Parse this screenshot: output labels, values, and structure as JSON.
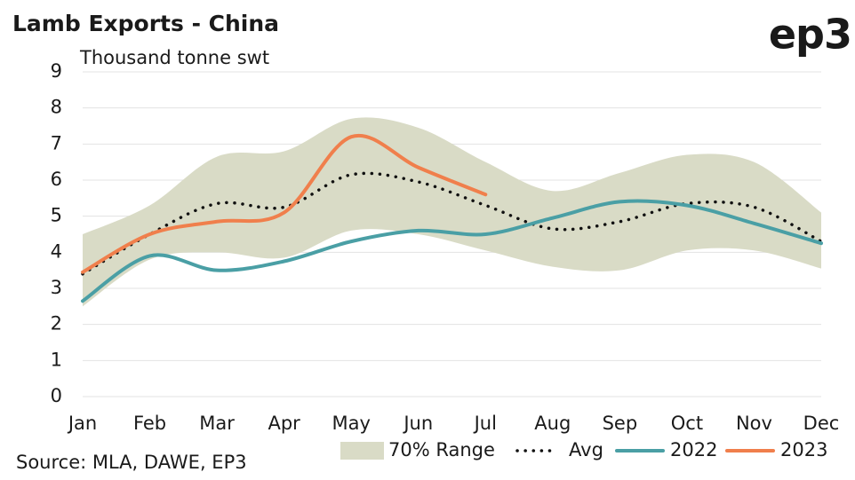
{
  "chart_data": {
    "type": "line",
    "title": "Lamb Exports - China",
    "subtitle": "Thousand tonne swt",
    "logo": "ep3",
    "source": "Source: MLA, DAWE, EP3",
    "categories": [
      "Jan",
      "Feb",
      "Mar",
      "Apr",
      "May",
      "Jun",
      "Jul",
      "Aug",
      "Sep",
      "Oct",
      "Nov",
      "Dec"
    ],
    "ylim": [
      0,
      9
    ],
    "yticks": [
      0,
      1,
      2,
      3,
      4,
      5,
      6,
      7,
      8,
      9
    ],
    "grid": true,
    "series": [
      {
        "name": "70% Range",
        "color": "#d9dbc6",
        "kind": "band",
        "high": [
          4.5,
          5.3,
          6.65,
          6.8,
          7.7,
          7.45,
          6.5,
          5.7,
          6.2,
          6.7,
          6.5,
          5.1
        ],
        "low": [
          2.5,
          3.8,
          4.0,
          3.85,
          4.6,
          4.5,
          4.05,
          3.6,
          3.5,
          4.05,
          4.05,
          3.55
        ]
      },
      {
        "name": "Avg",
        "color": "#111111",
        "kind": "dotted",
        "values": [
          3.4,
          4.5,
          5.35,
          5.25,
          6.15,
          5.95,
          5.3,
          4.65,
          4.85,
          5.35,
          5.25,
          4.3
        ]
      },
      {
        "name": "2022",
        "color": "#4a9fa5",
        "kind": "line",
        "values": [
          2.65,
          3.9,
          3.5,
          3.75,
          4.3,
          4.6,
          4.5,
          4.95,
          5.4,
          5.3,
          4.8,
          4.25
        ]
      },
      {
        "name": "2023",
        "color": "#f07f4c",
        "kind": "line",
        "values": [
          3.45,
          4.5,
          4.85,
          5.1,
          7.2,
          6.35,
          5.6,
          null,
          null,
          null,
          null,
          null
        ]
      }
    ]
  }
}
